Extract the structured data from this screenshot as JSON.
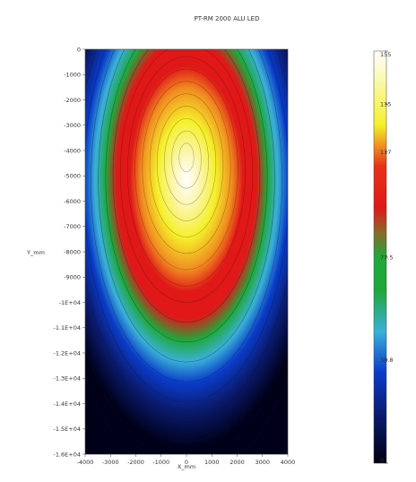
{
  "chart_data": {
    "type": "heatmap",
    "title": "PT-RM 2000 ALU LED",
    "xlabel": "X_mm",
    "ylabel": "Y_mm",
    "x_ticks": [
      "-4000",
      "-3000",
      "-2000",
      "-1000",
      "0",
      "1000",
      "2000",
      "3000",
      "4000"
    ],
    "y_ticks": [
      "0",
      "-1000",
      "-2000",
      "-3000",
      "-4000",
      "-5000",
      "-6000",
      "-7000",
      "-8000",
      "-9000",
      "-1E+04",
      "-1.1E+04",
      "-1.2E+04",
      "-1.3E+04",
      "-1.4E+04",
      "-1.5E+04",
      "-1.6E+04"
    ],
    "xlim": [
      -4000,
      4000
    ],
    "ylim": [
      -16000,
      0
    ],
    "colorbar_ticks": [
      "155",
      "135",
      "117",
      "77.5",
      "38.8",
      "0"
    ],
    "colorbar_range": [
      0,
      155
    ],
    "peak": {
      "x": 0,
      "y": -4200,
      "value": 155
    },
    "grid": false,
    "colors": {
      "low": "#000010",
      "blue": "#0a3cc8",
      "cyan": "#3ab0d8",
      "green": "#1fa83a",
      "red": "#e01818",
      "yellow": "#f5f02a",
      "high": "#ffffff"
    }
  }
}
